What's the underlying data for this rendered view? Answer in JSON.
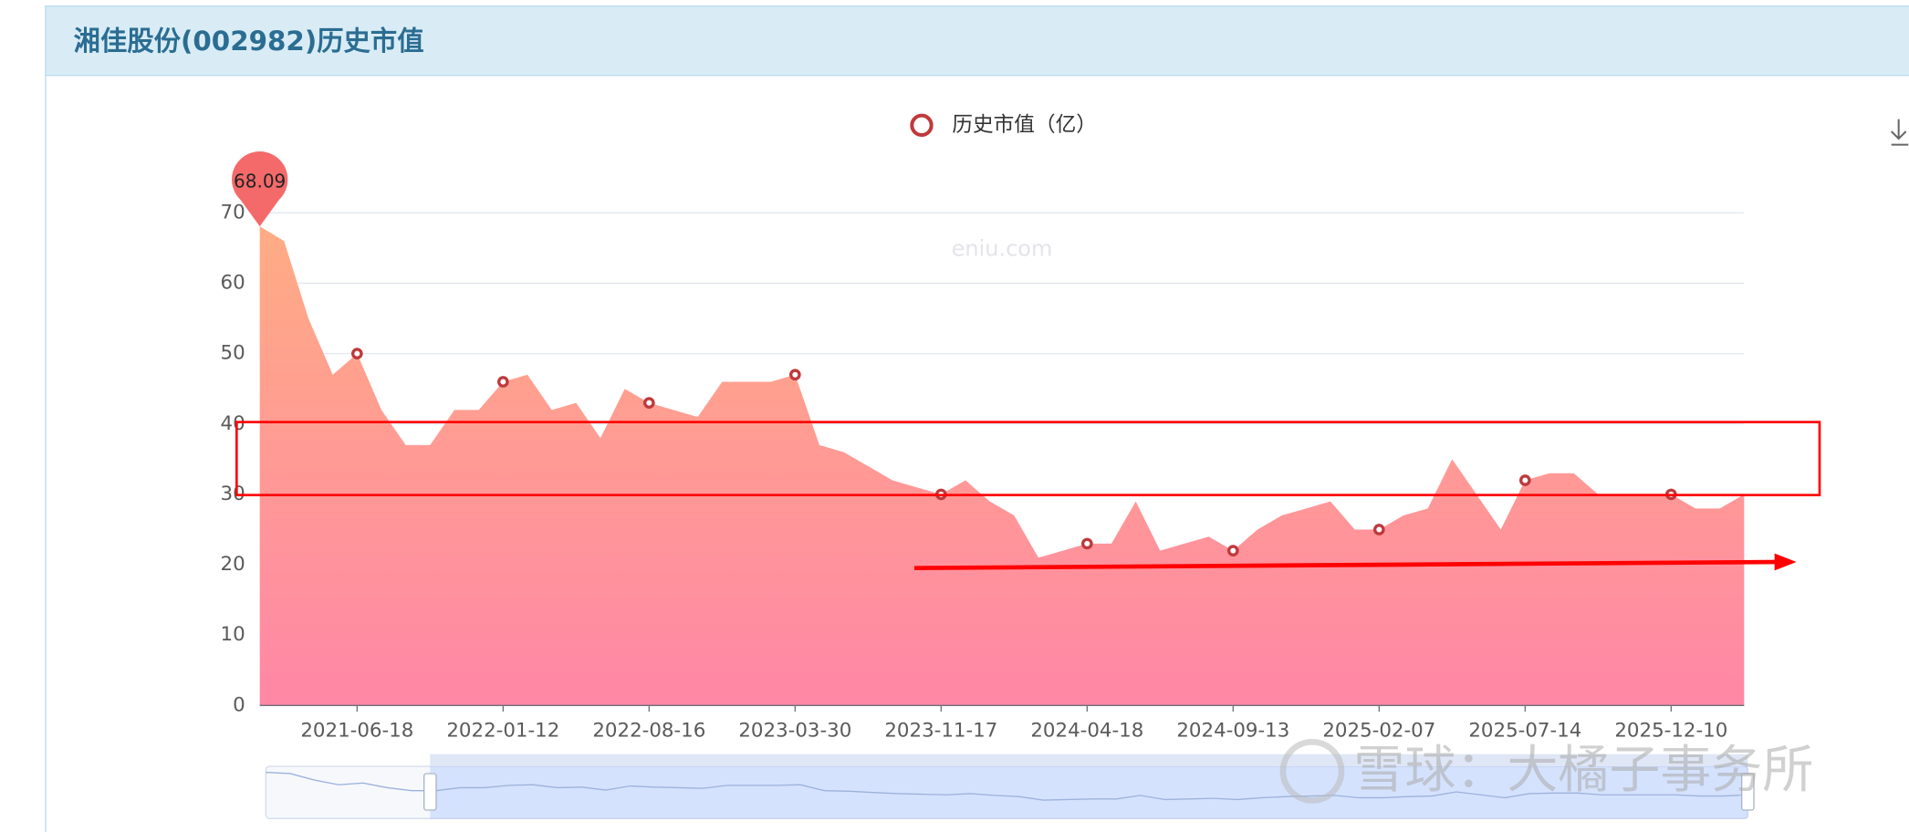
{
  "header": {
    "title": "湘佳股份(002982)历史市值"
  },
  "chart_data": {
    "type": "area",
    "watermark": "eniu.com",
    "categories": [
      null,
      null,
      null,
      null,
      "2021-06-18",
      null,
      null,
      null,
      null,
      null,
      "2022-01-12",
      null,
      null,
      null,
      null,
      null,
      "2022-08-16",
      null,
      null,
      null,
      null,
      null,
      "2023-03-30",
      null,
      null,
      null,
      null,
      null,
      "2023-11-17",
      null,
      null,
      null,
      null,
      null,
      "2024-04-18",
      null,
      null,
      null,
      null,
      null,
      "2024-09-13",
      null,
      null,
      null,
      null,
      null,
      "2025-02-07",
      null,
      null,
      null,
      null,
      null,
      "2025-07-14",
      null,
      null,
      null,
      null,
      null,
      "2025-12-10",
      null,
      null,
      null
    ],
    "series": [
      {
        "name": "历史市值（亿）",
        "color": "#c0393b",
        "area_colors": [
          "#ffac84",
          "#ff87a6"
        ],
        "values": [
          68.09,
          66,
          55,
          47,
          50,
          42,
          37,
          37,
          42,
          42,
          46,
          47,
          42,
          43,
          38,
          45,
          43,
          42,
          41,
          46,
          46,
          46,
          47,
          37,
          36,
          34,
          32,
          31,
          30,
          32,
          29,
          27,
          21,
          22,
          23,
          23,
          29,
          22,
          23,
          24,
          22,
          25,
          27,
          28,
          29,
          25,
          25,
          27,
          28,
          35,
          30,
          25,
          32,
          33,
          33,
          30,
          30,
          30,
          30,
          28,
          28,
          30
        ]
      }
    ],
    "ylim": [
      0,
      70
    ],
    "yticks": [
      0,
      10,
      20,
      30,
      40,
      50,
      60,
      70
    ],
    "grid": true
  },
  "overlay_watermark": "雪球：大橘子事务所"
}
